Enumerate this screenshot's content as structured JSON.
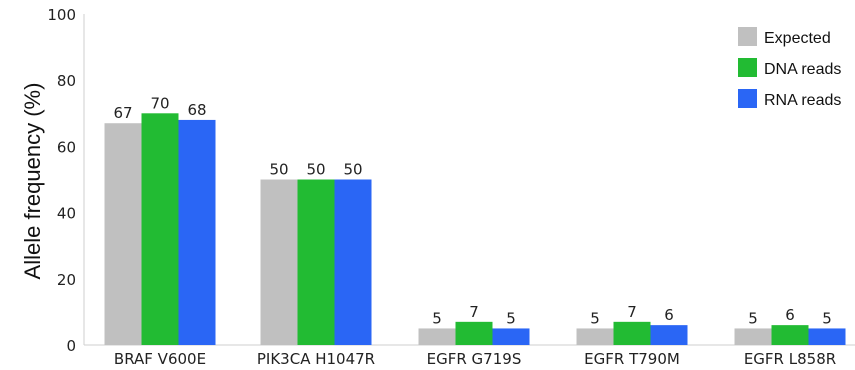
{
  "chart_data": {
    "type": "bar",
    "title": "",
    "xlabel": "",
    "ylabel": "Allele frequency (%)",
    "ylim": [
      0,
      100
    ],
    "yticks": [
      "0",
      "20",
      "40",
      "60",
      "80",
      "100"
    ],
    "grid": false,
    "legend_position": "top-right",
    "categories": [
      "BRAF V600E",
      "PIK3CA H1047R",
      "EGFR G719S",
      "EGFR T790M",
      "EGFR L858R"
    ],
    "series": [
      {
        "name": "Expected",
        "color": "#c0c0c0",
        "values": [
          67,
          50,
          5,
          5,
          5
        ],
        "labels": [
          "67",
          "50",
          "5",
          "5",
          "5"
        ]
      },
      {
        "name": "DNA reads",
        "color": "#22bb33",
        "values": [
          70,
          50,
          7,
          7,
          6
        ],
        "labels": [
          "70",
          "50",
          "7",
          "7",
          "6"
        ]
      },
      {
        "name": "RNA reads",
        "color": "#2a66f5",
        "values": [
          68,
          50,
          5,
          6,
          5
        ],
        "labels": [
          "68",
          "50",
          "5",
          "6",
          "5"
        ]
      }
    ]
  }
}
